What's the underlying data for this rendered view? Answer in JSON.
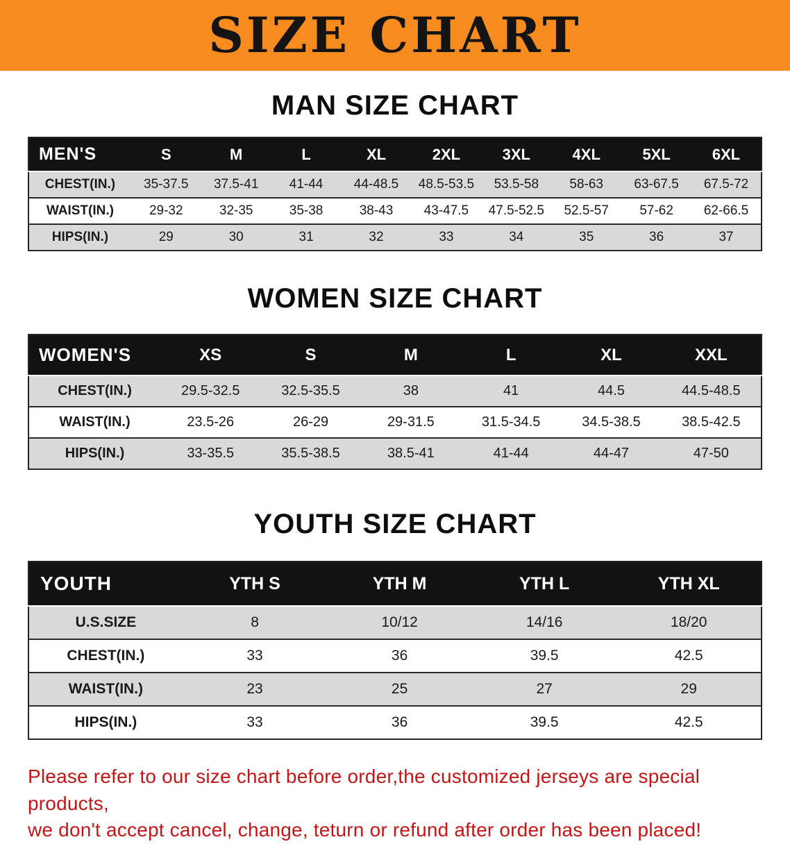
{
  "banner": {
    "title": "SIZE CHART",
    "bg_color": "#f68b1f",
    "text_color": "#141414"
  },
  "men": {
    "heading": "MAN SIZE CHART",
    "table": {
      "header": [
        "MEN'S",
        "S",
        "M",
        "L",
        "XL",
        "2XL",
        "3XL",
        "4XL",
        "5XL",
        "6XL"
      ],
      "rows": [
        [
          "CHEST(IN.)",
          "35-37.5",
          "37.5-41",
          "41-44",
          "44-48.5",
          "48.5-53.5",
          "53.5-58",
          "58-63",
          "63-67.5",
          "67.5-72"
        ],
        [
          "WAIST(IN.)",
          "29-32",
          "32-35",
          "35-38",
          "38-43",
          "43-47.5",
          "47.5-52.5",
          "52.5-57",
          "57-62",
          "62-66.5"
        ],
        [
          "HIPS(IN.)",
          "29",
          "30",
          "31",
          "32",
          "33",
          "34",
          "35",
          "36",
          "37"
        ]
      ]
    }
  },
  "women": {
    "heading": "WOMEN SIZE CHART",
    "table": {
      "header": [
        "WOMEN'S",
        "XS",
        "S",
        "M",
        "L",
        "XL",
        "XXL"
      ],
      "rows": [
        [
          "CHEST(IN.)",
          "29.5-32.5",
          "32.5-35.5",
          "38",
          "41",
          "44.5",
          "44.5-48.5"
        ],
        [
          "WAIST(IN.)",
          "23.5-26",
          "26-29",
          "29-31.5",
          "31.5-34.5",
          "34.5-38.5",
          "38.5-42.5"
        ],
        [
          "HIPS(IN.)",
          "33-35.5",
          "35.5-38.5",
          "38.5-41",
          "41-44",
          "44-47",
          "47-50"
        ]
      ]
    }
  },
  "youth": {
    "heading": "YOUTH SIZE CHART",
    "table": {
      "header": [
        "YOUTH",
        "YTH S",
        "YTH M",
        "YTH L",
        "YTH XL"
      ],
      "rows": [
        [
          "U.S.SIZE",
          "8",
          "10/12",
          "14/16",
          "18/20"
        ],
        [
          "CHEST(IN.)",
          "33",
          "36",
          "39.5",
          "42.5"
        ],
        [
          "WAIST(IN.)",
          "23",
          "25",
          "27",
          "29"
        ],
        [
          "HIPS(IN.)",
          "33",
          "36",
          "39.5",
          "42.5"
        ]
      ]
    }
  },
  "footnote": {
    "line1": "Please refer to our size chart before order,the customized jerseys are special products,",
    "line2": "we don't accept cancel, change, teturn or refund after order has been placed!",
    "color": "#c41616"
  }
}
